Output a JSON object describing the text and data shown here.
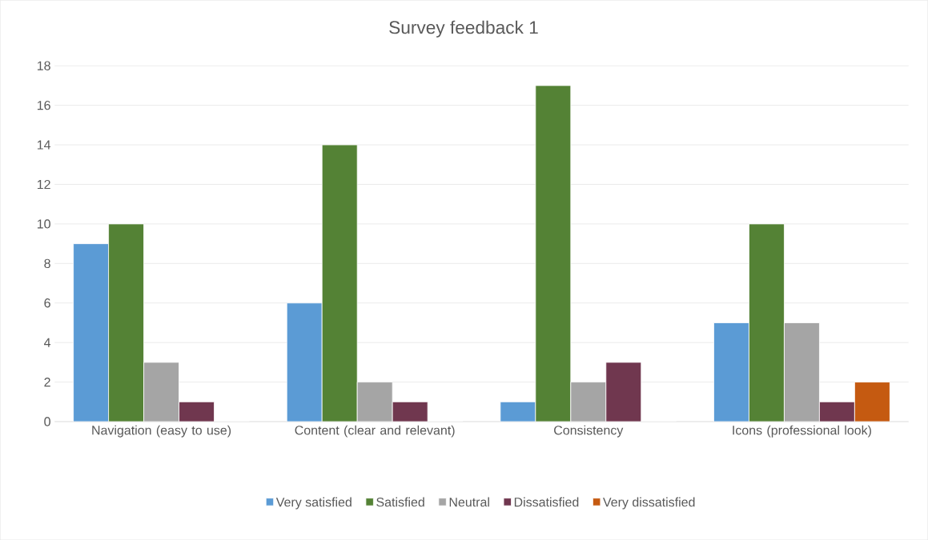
{
  "chart_data": {
    "type": "bar",
    "title": "Survey feedback 1",
    "categories": [
      "Navigation (easy to use)",
      "Content (clear and relevant)",
      "Consistency",
      "Icons (professional look)"
    ],
    "series": [
      {
        "name": "Very satisfied",
        "color": "#5b9bd5",
        "values": [
          9,
          6,
          1,
          5
        ]
      },
      {
        "name": "Satisfied",
        "color": "#548235",
        "values": [
          10,
          14,
          17,
          10
        ]
      },
      {
        "name": "Neutral",
        "color": "#a5a5a5",
        "values": [
          3,
          2,
          2,
          5
        ]
      },
      {
        "name": "Dissatisfied",
        "color": "#70374f",
        "values": [
          1,
          1,
          3,
          1
        ]
      },
      {
        "name": "Very dissatisfied",
        "color": "#c55a11",
        "values": [
          0,
          0,
          0,
          2
        ]
      }
    ],
    "ylim": [
      0,
      18
    ],
    "yticks": [
      0,
      2,
      4,
      6,
      8,
      10,
      12,
      14,
      16,
      18
    ],
    "grid": "y",
    "legend": "bottom"
  }
}
